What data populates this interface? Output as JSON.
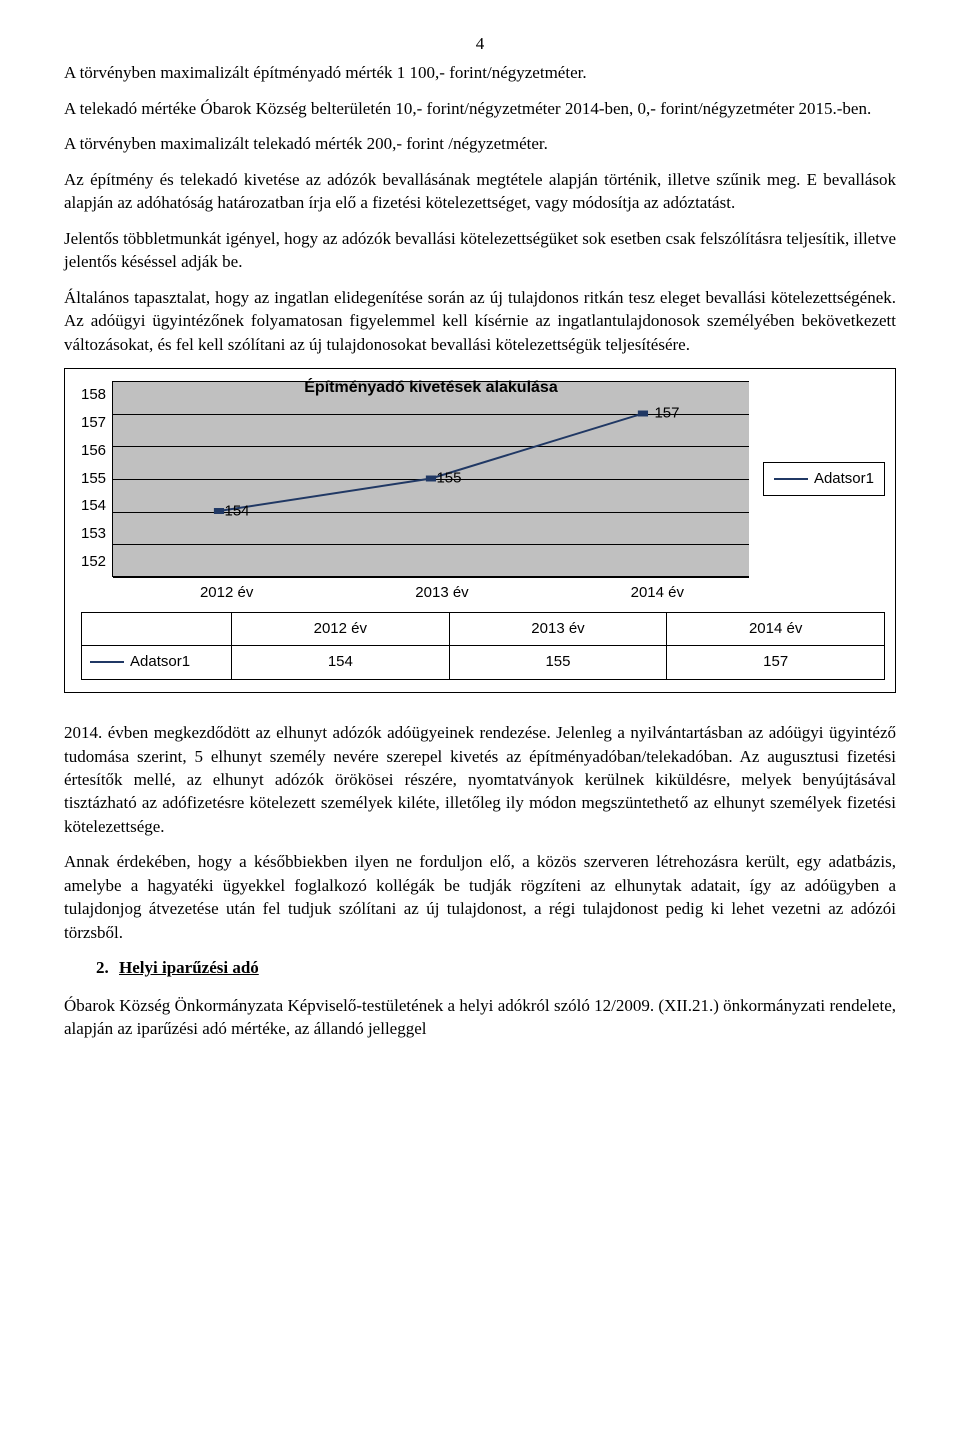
{
  "page_number": "4",
  "p1": "A törvényben maximalizált építményadó mérték 1 100,- forint/négyzetméter.",
  "p2": "A telekadó mértéke Óbarok Község belterületén 10,- forint/négyzetméter 2014-ben, 0,- forint/négyzetméter 2015.-ben.",
  "p3": "A törvényben maximalizált telekadó mérték 200,- forint /négyzetméter.",
  "p4": "Az építmény és telekadó kivetése az adózók bevallásának megtétele alapján történik, illetve szűnik meg. E bevallások alapján az adóhatóság határozatban írja elő a fizetési kötelezettséget, vagy módosítja az adóztatást.",
  "p5": "Jelentős többletmunkát igényel, hogy az adózók bevallási kötelezettségüket sok esetben csak felszólításra teljesítik, illetve jelentős késéssel adják be.",
  "p6": "Általános tapasztalat, hogy az ingatlan elidegenítése során az új tulajdonos ritkán tesz eleget bevallási kötelezettségének. Az adóügyi ügyintézőnek folyamatosan figyelemmel kell kísérnie az ingatlantulajdonosok személyében bekövetkezett változásokat, és fel kell szólítani az új tulajdonosokat bevallási kötelezettségük teljesítésére.",
  "chart": {
    "title": "Építményadó kivetések alakulása",
    "categories": [
      "2012 év",
      "2013 év",
      "2014 év"
    ],
    "values": [
      154,
      155,
      157
    ],
    "point_labels": [
      "154",
      "155",
      "157"
    ],
    "ylim_min": 152,
    "ylim_max": 158,
    "yticks": [
      "158",
      "157",
      "156",
      "155",
      "154",
      "153",
      "152"
    ],
    "series_name": "Adatsor1",
    "line_color": "#203864",
    "plot_bg": "#c0c0c0",
    "grid_color": "#000000",
    "title_fontsize": 16,
    "tick_fontsize": 15
  },
  "p7": "2014. évben megkezdődött az elhunyt adózók adóügyeinek rendezése. Jelenleg a nyilvántartásban az adóügyi ügyintéző tudomása szerint, 5 elhunyt személy nevére szerepel kivetés az építményadóban/telekadóban. Az augusztusi fizetési értesítők mellé, az elhunyt adózók örökösei részére, nyomtatványok kerülnek kiküldésre, melyek benyújtásával tisztázható az adófizetésre kötelezett személyek kiléte, illetőleg ily módon megszüntethető az elhunyt személyek fizetési kötelezettsége.",
  "p8": "Annak érdekében, hogy a későbbiekben ilyen ne forduljon elő, a közös szerveren létrehozásra került, egy adatbázis, amelybe a hagyatéki ügyekkel foglalkozó kollégák be tudják rögzíteni az elhunytak adatait, így az adóügyben a tulajdonjog átvezetése után fel tudjuk szólítani az új tulajdonost, a régi tulajdonost pedig ki lehet vezetni az adózói törzsből.",
  "section2": {
    "num": "2.",
    "title": "Helyi iparűzési adó"
  },
  "p9": "Óbarok Község Önkormányzata Képviselő-testületének a helyi adókról szóló 12/2009. (XII.21.) önkormányzati rendelete, alapján az iparűzési adó mértéke, az állandó jelleggel"
}
